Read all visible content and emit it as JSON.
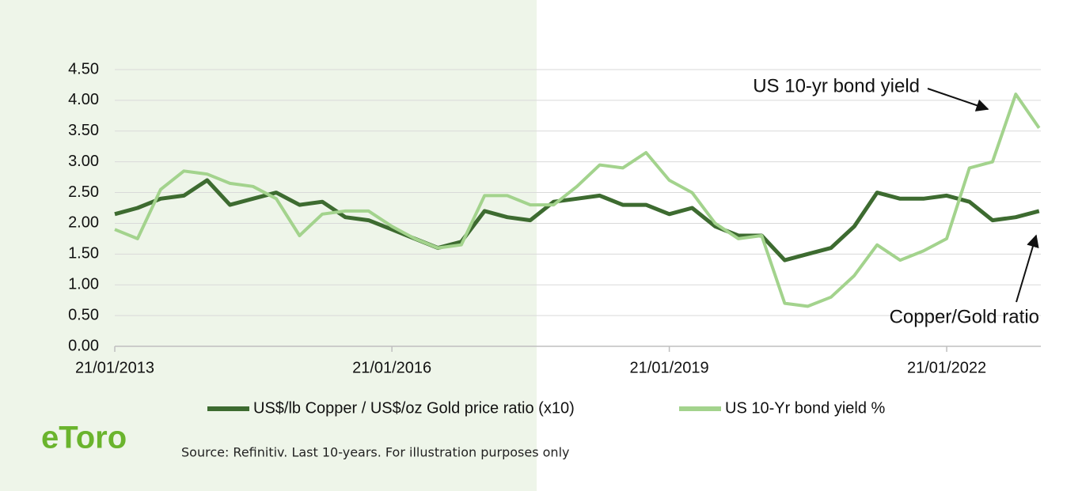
{
  "chart_data": {
    "type": "line",
    "x": [
      "2013-01-21",
      "2013-04-21",
      "2013-07-21",
      "2013-10-21",
      "2014-01-21",
      "2014-04-21",
      "2014-07-21",
      "2014-10-21",
      "2015-01-21",
      "2015-04-21",
      "2015-07-21",
      "2015-10-21",
      "2016-01-21",
      "2016-04-21",
      "2016-07-21",
      "2016-10-21",
      "2017-01-21",
      "2017-04-21",
      "2017-07-21",
      "2017-10-21",
      "2018-01-21",
      "2018-04-21",
      "2018-07-21",
      "2018-10-21",
      "2019-01-21",
      "2019-04-21",
      "2019-07-21",
      "2019-10-21",
      "2020-01-21",
      "2020-04-21",
      "2020-07-21",
      "2020-10-21",
      "2021-01-21",
      "2021-04-21",
      "2021-07-21",
      "2021-10-21",
      "2022-01-21",
      "2022-04-21",
      "2022-07-21",
      "2022-10-21",
      "2023-01-21"
    ],
    "series": [
      {
        "name": "US$/lb Copper / US$/oz Gold price ratio (x10)",
        "color": "#3d6b30",
        "values": [
          2.15,
          2.25,
          2.4,
          2.45,
          2.7,
          2.3,
          2.4,
          2.5,
          2.3,
          2.35,
          2.1,
          2.05,
          1.9,
          1.75,
          1.6,
          1.7,
          2.2,
          2.1,
          2.05,
          2.35,
          2.4,
          2.45,
          2.3,
          2.3,
          2.15,
          2.25,
          1.95,
          1.8,
          1.8,
          1.4,
          1.5,
          1.6,
          1.95,
          2.5,
          2.4,
          2.4,
          2.45,
          2.35,
          2.05,
          2.1,
          2.2
        ]
      },
      {
        "name": "US 10-Yr bond yield %",
        "color": "#a3d38d",
        "values": [
          1.9,
          1.75,
          2.55,
          2.85,
          2.8,
          2.65,
          2.6,
          2.4,
          1.8,
          2.15,
          2.2,
          2.2,
          1.95,
          1.75,
          1.6,
          1.65,
          2.45,
          2.45,
          2.3,
          2.3,
          2.6,
          2.95,
          2.9,
          3.15,
          2.7,
          2.5,
          2.0,
          1.75,
          1.8,
          0.7,
          0.65,
          0.8,
          1.15,
          1.65,
          1.4,
          1.55,
          1.75,
          2.9,
          3.0,
          4.1,
          3.55
        ]
      }
    ],
    "xlim": [
      "2013-01-21",
      "2023-01-28"
    ],
    "xticks": [
      {
        "value": "2013-01-21",
        "label": "21/01/2013"
      },
      {
        "value": "2016-01-21",
        "label": "21/01/2016"
      },
      {
        "value": "2019-01-21",
        "label": "21/01/2019"
      },
      {
        "value": "2022-01-21",
        "label": "21/01/2022"
      }
    ],
    "ylim": [
      0,
      4.5
    ],
    "yticks": [
      {
        "value": 0,
        "label": "0.00"
      },
      {
        "value": 0.5,
        "label": "0.50"
      },
      {
        "value": 1,
        "label": "1.00"
      },
      {
        "value": 1.5,
        "label": "1.50"
      },
      {
        "value": 2,
        "label": "2.00"
      },
      {
        "value": 2.5,
        "label": "2.50"
      },
      {
        "value": 3,
        "label": "3.00"
      },
      {
        "value": 3.5,
        "label": "3.50"
      },
      {
        "value": 4,
        "label": "4.00"
      },
      {
        "value": 4.5,
        "label": "4.50"
      }
    ],
    "grid": true,
    "annotations": [
      "US 10-yr bond yield",
      "Copper/Gold ratio"
    ],
    "source": "Source: Refinitiv. Last 10-years. For illustration purposes only",
    "logo": "eToro"
  }
}
